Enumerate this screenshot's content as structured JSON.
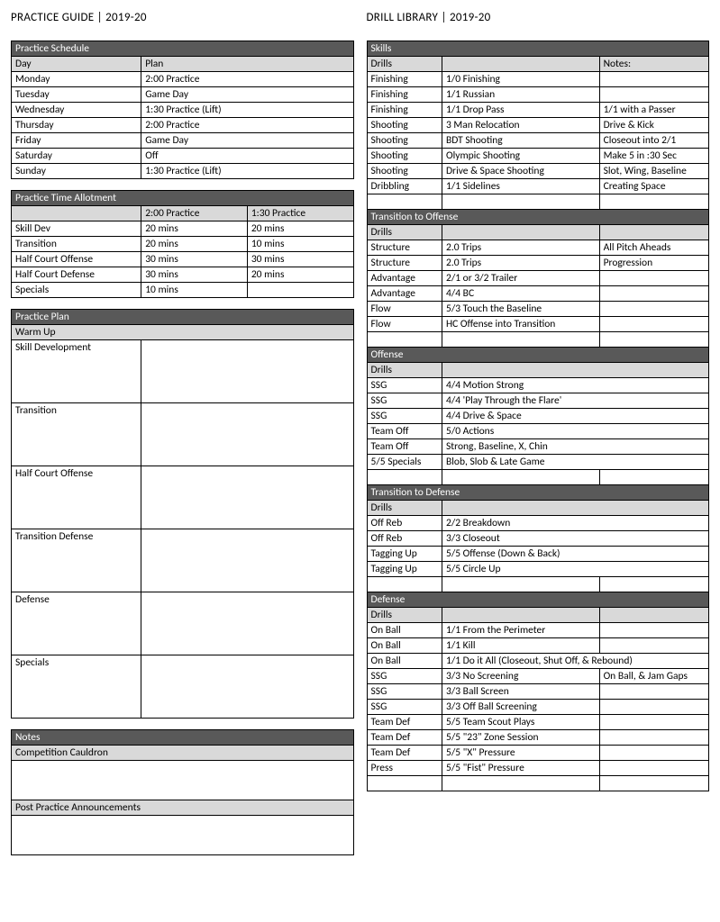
{
  "left": {
    "title": "PRACTICE GUIDE | 2019-20",
    "schedule": {
      "header": "Practice Schedule",
      "cols": [
        "Day",
        "Plan"
      ],
      "rows": [
        [
          "Monday",
          "2:00 Practice"
        ],
        [
          "Tuesday",
          "Game Day"
        ],
        [
          "Wednesday",
          "1:30 Practice (Lift)"
        ],
        [
          "Thursday",
          "2:00 Practice"
        ],
        [
          "Friday",
          "Game Day"
        ],
        [
          "Saturday",
          "Off"
        ],
        [
          "Sunday",
          "1:30 Practice (Lift)"
        ]
      ]
    },
    "allotment": {
      "header": "Practice Time Allotment",
      "cols": [
        "",
        "2:00 Practice",
        "1:30 Practice"
      ],
      "rows": [
        [
          "Skill Dev",
          "20 mins",
          "20 mins"
        ],
        [
          "Transition",
          "20 mins",
          "10 mins"
        ],
        [
          "Half Court Offense",
          "30 mins",
          "30 mins"
        ],
        [
          "Half Court Defense",
          "30 mins",
          "20 mins"
        ],
        [
          "Specials",
          "10 mins",
          ""
        ]
      ]
    },
    "plan": {
      "header": "Practice Plan",
      "warmup": "Warm Up",
      "sections": [
        "Skill Development",
        "Transition",
        "Half Court Offense",
        "Transition Defense",
        "Defense",
        "Specials"
      ]
    },
    "notes": {
      "header": "Notes",
      "cauldron": "Competition Cauldron",
      "post": "Post Practice Announcements"
    }
  },
  "right": {
    "title": "DRILL LIBRARY | 2019-20",
    "skills": {
      "header": "Skills",
      "cols": [
        "Drills",
        "",
        "Notes:"
      ],
      "rows": [
        [
          "Finishing",
          "1/0 Finishing",
          ""
        ],
        [
          "Finishing",
          "1/1 Russian",
          ""
        ],
        [
          "Finishing",
          "1/1 Drop Pass",
          "1/1 with a Passer"
        ],
        [
          "Shooting",
          "3 Man Relocation",
          "Drive & Kick"
        ],
        [
          "Shooting",
          "BDT Shooting",
          "Closeout into 2/1"
        ],
        [
          "Shooting",
          "Olympic Shooting",
          "Make 5 in :30 Sec"
        ],
        [
          "Shooting",
          "Drive & Space Shooting",
          "Slot, Wing, Baseline"
        ],
        [
          "Dribbling",
          "1/1 Sidelines",
          "Creating Space"
        ]
      ]
    },
    "t2o": {
      "header": "Transition to Offense",
      "cols": [
        "Drills",
        "",
        ""
      ],
      "rows": [
        [
          "Structure",
          "2.0 Trips",
          "All Pitch Aheads"
        ],
        [
          "Structure",
          "2.0 Trips",
          "Progression"
        ],
        [
          "Advantage",
          "2/1 or 3/2 Trailer",
          ""
        ],
        [
          "Advantage",
          "4/4 BC",
          ""
        ],
        [
          "Flow",
          "5/3 Touch the Baseline",
          ""
        ],
        [
          "Flow",
          "HC Offense into Transition",
          ""
        ]
      ]
    },
    "offense": {
      "header": "Offense",
      "cols": [
        "Drills",
        "",
        ""
      ],
      "rows": [
        [
          "SSG",
          "4/4 Motion Strong",
          ""
        ],
        [
          "SSG",
          "4/4 'Play Through the Flare'",
          ""
        ],
        [
          "SSG",
          "4/4 Drive & Space",
          ""
        ],
        [
          "Team Off",
          "5/0 Actions",
          ""
        ],
        [
          "Team Off",
          "Strong, Baseline, X, Chin",
          ""
        ],
        [
          "5/5 Specials",
          "Blob, Slob & Late Game",
          ""
        ]
      ]
    },
    "t2d": {
      "header": "Transition to Defense",
      "cols": [
        "Drills",
        "",
        ""
      ],
      "rows": [
        [
          "Off Reb",
          "2/2 Breakdown",
          ""
        ],
        [
          "Off Reb",
          "3/3 Closeout",
          ""
        ],
        [
          "Tagging Up",
          "5/5 Offense (Down & Back)",
          ""
        ],
        [
          "Tagging Up",
          "5/5 Circle Up",
          ""
        ]
      ]
    },
    "defense": {
      "header": "Defense",
      "cols": [
        "Drills",
        "",
        ""
      ],
      "rows": [
        [
          "On Ball",
          "1/1 From the Perimeter",
          ""
        ],
        [
          "On Ball",
          "1/1 Kill",
          ""
        ],
        [
          "On Ball",
          "1/1 Do it All   (Closeout, Shut Off, & Rebound)",
          ""
        ],
        [
          "SSG",
          "3/3 No Screening",
          "On Ball, & Jam Gaps"
        ],
        [
          "SSG",
          "3/3 Ball Screen",
          ""
        ],
        [
          "SSG",
          "3/3 Off Ball Screening",
          ""
        ],
        [
          "Team Def",
          "5/5 Team Scout Plays",
          ""
        ],
        [
          "Team Def",
          "5/5 \"23\" Zone Session",
          ""
        ],
        [
          "Team Def",
          "5/5 \"X\" Pressure",
          ""
        ],
        [
          "Press",
          "5/5 \"Fist\" Pressure",
          ""
        ]
      ]
    },
    "colors": {
      "header_bg": "#595959",
      "sub_bg": "#d9d9d9"
    }
  }
}
